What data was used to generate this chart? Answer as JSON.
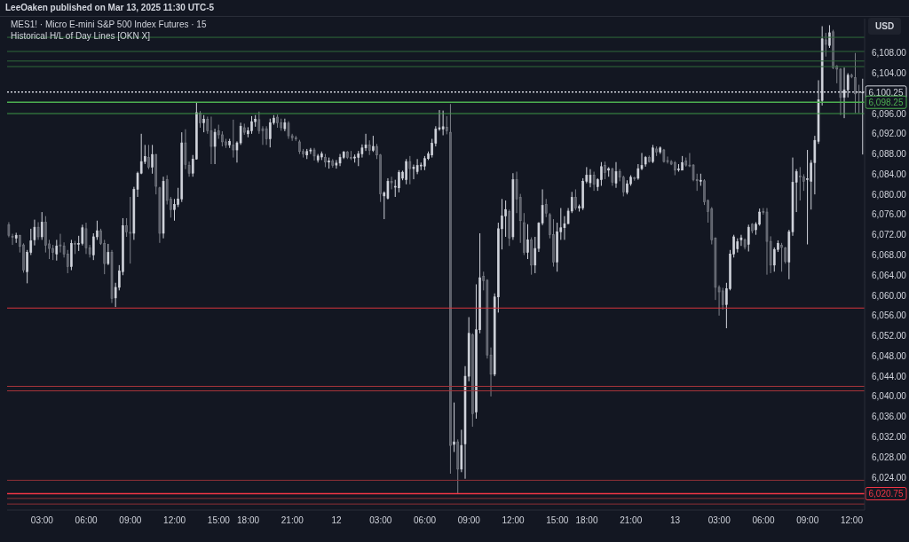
{
  "chart_data": {
    "type": "candlestick",
    "title": "MES1! · Micro E-mini S&P 500 Index Futures · 15",
    "subtitle": "Historical H/L of Day Lines [OKN X]",
    "ylabel": "USD",
    "annotations": [
      "LeeOaken published on Mar 13, 2025 11:30 UTC-5"
    ],
    "categories": [
      null,
      null,
      null,
      null,
      null,
      null,
      null,
      null,
      null,
      "03:00",
      null,
      null,
      null,
      null,
      null,
      null,
      null,
      null,
      null,
      null,
      null,
      "06:00",
      null,
      null,
      null,
      null,
      null,
      null,
      null,
      null,
      null,
      null,
      null,
      "09:00",
      null,
      null,
      null,
      null,
      null,
      null,
      null,
      null,
      null,
      null,
      null,
      "12:00",
      null,
      null,
      null,
      null,
      null,
      null,
      null,
      null,
      null,
      null,
      null,
      "15:00",
      null,
      null,
      null,
      null,
      null,
      null,
      null,
      "18:00",
      null,
      null,
      null,
      null,
      null,
      null,
      null,
      null,
      null,
      null,
      null,
      "21:00",
      null,
      null,
      null,
      null,
      null,
      null,
      null,
      null,
      null,
      null,
      null,
      "12",
      null,
      null,
      null,
      null,
      null,
      null,
      null,
      null,
      null,
      null,
      null,
      "03:00",
      null,
      null,
      null,
      null,
      null,
      null,
      null,
      null,
      null,
      null,
      null,
      "06:00",
      null,
      null,
      null,
      null,
      null,
      null,
      null,
      null,
      null,
      null,
      null,
      "09:00",
      null,
      null,
      null,
      null,
      null,
      null,
      null,
      null,
      null,
      null,
      null,
      "12:00",
      null,
      null,
      null,
      null,
      null,
      null,
      null,
      null,
      null,
      null,
      null,
      "15:00",
      null,
      null,
      null,
      null,
      null,
      null,
      null,
      "18:00",
      null,
      null,
      null,
      null,
      null,
      null,
      null,
      null,
      null,
      null,
      null,
      "21:00",
      null,
      null,
      null,
      null,
      null,
      null,
      null,
      null,
      null,
      null,
      null,
      "13",
      null,
      null,
      null,
      null,
      null,
      null,
      null,
      null,
      null,
      null,
      null,
      "03:00",
      null,
      null,
      null,
      null,
      null,
      null,
      null,
      null,
      null,
      null,
      null,
      "06:00",
      null,
      null,
      null,
      null,
      null,
      null,
      null,
      null,
      null,
      null,
      null,
      "09:00",
      null,
      null,
      null,
      null,
      null,
      null,
      null,
      null,
      null,
      null,
      null,
      "12:00",
      null,
      null,
      null
    ],
    "series": [
      {
        "colors": [
          "#5d606b",
          "#5d606b",
          "#d1d4dc",
          "#5d606b",
          "#5d606b",
          "#d1d4dc",
          "#d1d4dc",
          "#d1d4dc",
          "#5d606b",
          "#d1d4dc",
          "#5d606b",
          "#5d606b",
          "#5d606b",
          "#d1d4dc",
          "#5d606b",
          "#5d606b",
          "#5d606b",
          "#d1d4dc",
          "#5d606b",
          "#d1d4dc",
          "#d1d4dc",
          "#5d606b",
          "#5d606b",
          "#d1d4dc",
          "#d1d4dc",
          "#5d606b",
          "#5d606b",
          "#d1d4dc",
          "#5d606b",
          "#d1d4dc",
          "#d1d4dc",
          "#d1d4dc",
          "#5d606b",
          "#5d606b",
          "#d1d4dc",
          "#d1d4dc",
          "#d1d4dc",
          "#d1d4dc",
          "#5d606b",
          "#d1d4dc",
          "#5d606b",
          "#5d606b",
          "#d1d4dc",
          "#5d606b",
          "#5d606b",
          "#d1d4dc",
          "#d1d4dc",
          "#d1d4dc",
          "#5d606b",
          "#5d606b",
          "#d1d4dc",
          "#d1d4dc",
          "#5d606b",
          "#d1d4dc",
          "#5d606b",
          "#5d606b",
          "#d1d4dc",
          "#5d606b",
          "#5d606b",
          "#5d606b",
          "#d1d4dc",
          "#5d606b",
          "#d1d4dc",
          "#d1d4dc",
          "#5d606b",
          "#d1d4dc",
          "#d1d4dc",
          "#d1d4dc",
          "#5d606b",
          "#5d606b",
          "#5d606b",
          "#d1d4dc",
          "#d1d4dc",
          "#5d606b",
          "#5d606b",
          "#d1d4dc",
          "#5d606b",
          "#5d606b",
          "#5d606b",
          "#5d606b",
          "#5d606b",
          "#d1d4dc",
          "#d1d4dc",
          "#5d606b",
          "#d1d4dc",
          "#d1d4dc",
          "#5d606b",
          "#d1d4dc",
          "#5d606b",
          "#d1d4dc",
          "#d1d4dc",
          "#d1d4dc",
          "#5d606b",
          "#5d606b",
          "#d1d4dc",
          "#d1d4dc",
          "#d1d4dc",
          "#d1d4dc",
          "#5d606b",
          "#d1d4dc",
          "#5d606b",
          "#5d606b",
          "#d1d4dc",
          "#d1d4dc",
          "#5d606b",
          "#d1d4dc",
          "#d1d4dc",
          "#d1d4dc",
          "#d1d4dc",
          "#5d606b",
          "#d1d4dc",
          "#d1d4dc",
          "#d1d4dc",
          "#d1d4dc",
          "#d1d4dc",
          "#d1d4dc",
          "#d1d4dc",
          "#d1d4dc",
          "#d1d4dc",
          "#5d606b",
          "#5d606b",
          "#d1d4dc",
          "#5d606b",
          "#d1d4dc",
          "#d1d4dc",
          "#d1d4dc",
          "#5d606b",
          "#d1d4dc",
          "#d1d4dc",
          "#5d606b",
          "#5d606b",
          "#5d606b",
          "#d1d4dc",
          "#d1d4dc",
          "#d1d4dc",
          "#d1d4dc",
          "#5d606b",
          "#d1d4dc",
          "#5d606b",
          "#5d606b",
          "#5d606b",
          "#d1d4dc",
          "#5d606b",
          "#d1d4dc",
          "#d1d4dc",
          "#d1d4dc",
          "#5d606b",
          "#5d606b",
          "#5d606b",
          "#d1d4dc",
          "#d1d4dc",
          "#d1d4dc",
          "#d1d4dc",
          "#d1d4dc",
          "#5d606b",
          "#d1d4dc",
          "#d1d4dc",
          "#d1d4dc",
          "#d1d4dc",
          "#5d606b",
          "#d1d4dc",
          "#d1d4dc",
          "#5d606b",
          "#d1d4dc",
          "#5d606b",
          "#d1d4dc",
          "#5d606b",
          "#5d606b",
          "#d1d4dc",
          "#d1d4dc",
          "#5d606b",
          "#d1d4dc",
          "#d1d4dc",
          "#d1d4dc",
          "#5d606b",
          "#d1d4dc",
          "#5d606b",
          "#d1d4dc",
          "#5d606b",
          "#5d606b",
          "#5d606b",
          "#5d606b",
          "#d1d4dc",
          "#d1d4dc",
          "#5d606b",
          "#5d606b",
          "#5d606b",
          "#5d606b",
          "#d1d4dc",
          "#5d606b",
          "#5d606b",
          "#5d606b",
          "#5d606b",
          "#5d606b",
          "#5d606b",
          "#d1d4dc",
          "#d1d4dc",
          "#d1d4dc",
          "#d1d4dc",
          "#d1d4dc",
          "#5d606b",
          "#d1d4dc",
          "#5d606b",
          "#d1d4dc",
          "#d1d4dc",
          "#5d606b",
          "#5d606b",
          "#5d606b",
          "#d1d4dc",
          "#d1d4dc",
          "#5d606b",
          "#5d606b",
          "#d1d4dc",
          "#d1d4dc",
          "#d1d4dc",
          "#5d606b",
          "#5d606b",
          "#d1d4dc",
          "#d1d4dc",
          "#d1d4dc",
          "#d1d4dc",
          "#d1d4dc",
          "#5d606b",
          "#d1d4dc",
          "#5d606b",
          "#5d606b",
          "#5d606b",
          "#d1d4dc",
          "#d1d4dc",
          "#5d606b",
          "#5d606b",
          "#5d606b",
          "#d1d4dc"
        ],
        "ohlc": [
          [
            6074.0,
            6074.5,
            6071.5,
            6071.9
          ],
          [
            6071.7,
            6072.2,
            6070.0,
            6071.5
          ],
          [
            6071.3,
            6072.4,
            6070.4,
            6071.9
          ],
          [
            6071.9,
            6072.0,
            6068.5,
            6069.7
          ],
          [
            6070.0,
            6070.3,
            6064.5,
            6065.0
          ],
          [
            6064.7,
            6069.0,
            6062.4,
            6068.5
          ],
          [
            6068.5,
            6073.2,
            6068.0,
            6070.8
          ],
          [
            6071.0,
            6075.0,
            6069.9,
            6073.5
          ],
          [
            6073.5,
            6074.5,
            6071.0,
            6071.6
          ],
          [
            6071.6,
            6076.5,
            6071.0,
            6074.5
          ],
          [
            6074.5,
            6075.7,
            6068.5,
            6069.9
          ],
          [
            6070.2,
            6071.0,
            6067.2,
            6069.3
          ],
          [
            6069.3,
            6070.0,
            6067.0,
            6068.5
          ],
          [
            6068.2,
            6071.0,
            6066.9,
            6069.8
          ],
          [
            6070.0,
            6072.2,
            6068.5,
            6069.8
          ],
          [
            6069.8,
            6070.5,
            6067.5,
            6068.2
          ],
          [
            6068.2,
            6069.0,
            6064.4,
            6065.7
          ],
          [
            6065.7,
            6071.0,
            6065.0,
            6070.3
          ],
          [
            6070.3,
            6070.8,
            6068.2,
            6070.1
          ],
          [
            6070.2,
            6071.8,
            6068.8,
            6070.3
          ],
          [
            6070.3,
            6074.0,
            6069.9,
            6073.4
          ],
          [
            6073.2,
            6074.4,
            6068.2,
            6069.4
          ],
          [
            6069.4,
            6070.0,
            6067.5,
            6068.2
          ],
          [
            6068.0,
            6072.3,
            6067.0,
            6071.6
          ],
          [
            6071.6,
            6074.8,
            6071.0,
            6072.8
          ],
          [
            6072.8,
            6073.2,
            6070.0,
            6070.3
          ],
          [
            6070.3,
            6071.0,
            6064.2,
            6066.3
          ],
          [
            6066.3,
            6070.2,
            6066.0,
            6068.5
          ],
          [
            6068.5,
            6069.0,
            6058.5,
            6059.4
          ],
          [
            6059.5,
            6062.5,
            6057.7,
            6061.6
          ],
          [
            6061.6,
            6066.0,
            6061.0,
            6064.8
          ],
          [
            6064.7,
            6075.3,
            6064.0,
            6073.8
          ],
          [
            6073.8,
            6075.3,
            6071.6,
            6072.6
          ],
          [
            6072.5,
            6079.5,
            6066.3,
            6072.3
          ],
          [
            6072.3,
            6081.5,
            6071.0,
            6081.0
          ],
          [
            6081.0,
            6084.5,
            6079.5,
            6084.2
          ],
          [
            6084.2,
            6092.0,
            6084.0,
            6086.5
          ],
          [
            6086.5,
            6089.8,
            6086.0,
            6087.5
          ],
          [
            6087.3,
            6089.8,
            6085.0,
            6085.4
          ],
          [
            6085.4,
            6089.8,
            6084.1,
            6087.9
          ],
          [
            6087.9,
            6088.0,
            6080.0,
            6081.6
          ],
          [
            6081.3,
            6081.5,
            6070.4,
            6072.3
          ],
          [
            6072.3,
            6083.5,
            6071.3,
            6082.6
          ],
          [
            6082.9,
            6083.8,
            6078.0,
            6078.8
          ],
          [
            6079.1,
            6079.5,
            6075.4,
            6077.0
          ],
          [
            6077.0,
            6079.1,
            6074.8,
            6078.0
          ],
          [
            6078.0,
            6081.3,
            6077.5,
            6079.1
          ],
          [
            6079.1,
            6092.3,
            6078.5,
            6090.2
          ],
          [
            6090.2,
            6092.9,
            6085.0,
            6085.9
          ],
          [
            6085.7,
            6086.5,
            6083.5,
            6084.2
          ],
          [
            6084.2,
            6087.8,
            6083.5,
            6087.0
          ],
          [
            6087.0,
            6098.2,
            6086.9,
            6096.2
          ],
          [
            6096.1,
            6096.5,
            6093.2,
            6094.2
          ],
          [
            6094.2,
            6095.7,
            6092.3,
            6094.9
          ],
          [
            6094.9,
            6095.4,
            6092.0,
            6092.6
          ],
          [
            6092.6,
            6095.4,
            6086.0,
            6089.5
          ],
          [
            6089.5,
            6093.0,
            6086.0,
            6092.3
          ],
          [
            6092.6,
            6093.8,
            6091.0,
            6091.8
          ],
          [
            6091.8,
            6092.5,
            6089.5,
            6090.4
          ],
          [
            6090.4,
            6091.0,
            6089.2,
            6089.8
          ],
          [
            6089.8,
            6091.0,
            6089.2,
            6090.5
          ],
          [
            6089.8,
            6094.8,
            6087.3,
            6088.8
          ],
          [
            6088.8,
            6090.5,
            6086.3,
            6090.2
          ],
          [
            6090.2,
            6094.2,
            6089.8,
            6093.5
          ],
          [
            6093.2,
            6094.0,
            6091.8,
            6092.3
          ],
          [
            6092.0,
            6093.3,
            6091.3,
            6092.6
          ],
          [
            6092.6,
            6095.5,
            6092.0,
            6094.4
          ],
          [
            6094.4,
            6095.7,
            6093.4,
            6094.9
          ],
          [
            6094.8,
            6096.4,
            6092.0,
            6092.6
          ],
          [
            6093.0,
            6093.5,
            6089.8,
            6092.6
          ],
          [
            6093.0,
            6093.5,
            6089.8,
            6091.0
          ],
          [
            6091.0,
            6095.0,
            6089.3,
            6094.2
          ],
          [
            6094.2,
            6095.7,
            6093.8,
            6095.1
          ],
          [
            6095.3,
            6095.8,
            6093.2,
            6094.2
          ],
          [
            6094.2,
            6095.0,
            6092.6,
            6093.2
          ],
          [
            6093.0,
            6095.0,
            6092.5,
            6094.2
          ],
          [
            6094.1,
            6094.5,
            6091.0,
            6091.6
          ],
          [
            6091.6,
            6092.0,
            6090.6,
            6091.2
          ],
          [
            6091.2,
            6091.6,
            6090.6,
            6091.0
          ],
          [
            6090.4,
            6090.8,
            6088.0,
            6088.5
          ],
          [
            6088.5,
            6089.0,
            6087.3,
            6088.0
          ],
          [
            6087.8,
            6089.0,
            6087.0,
            6088.5
          ],
          [
            6088.6,
            6089.2,
            6088.0,
            6088.8
          ],
          [
            6088.8,
            6089.2,
            6086.7,
            6087.6
          ],
          [
            6086.8,
            6088.0,
            6086.3,
            6087.6
          ],
          [
            6087.4,
            6088.5,
            6086.8,
            6088.0
          ],
          [
            6087.3,
            6088.0,
            6085.4,
            6086.4
          ],
          [
            6086.4,
            6087.3,
            6085.1,
            6086.6
          ],
          [
            6086.6,
            6087.0,
            6085.3,
            6085.7
          ],
          [
            6085.8,
            6086.8,
            6085.1,
            6086.2
          ],
          [
            6086.2,
            6088.0,
            6085.6,
            6087.3
          ],
          [
            6087.3,
            6088.6,
            6087.0,
            6088.4
          ],
          [
            6088.4,
            6088.6,
            6087.0,
            6087.3
          ],
          [
            6087.3,
            6088.6,
            6086.8,
            6087.2
          ],
          [
            6087.2,
            6087.9,
            6086.3,
            6087.4
          ],
          [
            6087.3,
            6088.6,
            6085.6,
            6088.0
          ],
          [
            6088.0,
            6089.9,
            6087.3,
            6089.2
          ],
          [
            6089.2,
            6092.0,
            6088.6,
            6089.8
          ],
          [
            6089.8,
            6090.7,
            6087.8,
            6088.7
          ],
          [
            6088.7,
            6091.6,
            6088.4,
            6089.5
          ],
          [
            6089.5,
            6090.0,
            6087.0,
            6087.8
          ],
          [
            6087.8,
            6088.0,
            6078.5,
            6080.1
          ],
          [
            6079.7,
            6080.6,
            6075.1,
            6080.3
          ],
          [
            6079.2,
            6083.2,
            6079.0,
            6082.6
          ],
          [
            6082.6,
            6083.5,
            6081.0,
            6082.3
          ],
          [
            6081.6,
            6082.9,
            6079.5,
            6081.6
          ],
          [
            6081.3,
            6084.8,
            6080.4,
            6084.3
          ],
          [
            6083.2,
            6084.7,
            6082.8,
            6084.4
          ],
          [
            6082.9,
            6087.0,
            6082.0,
            6086.5
          ],
          [
            6086.5,
            6087.6,
            6082.0,
            6085.1
          ],
          [
            6085.1,
            6085.9,
            6083.0,
            6085.4
          ],
          [
            6084.5,
            6087.0,
            6084.0,
            6085.7
          ],
          [
            6085.7,
            6086.3,
            6084.8,
            6085.8
          ],
          [
            6085.6,
            6087.6,
            6084.8,
            6087.1
          ],
          [
            6087.1,
            6088.5,
            6086.8,
            6088.0
          ],
          [
            6087.8,
            6091.0,
            6087.3,
            6090.1
          ],
          [
            6090.1,
            6093.5,
            6089.5,
            6092.9
          ],
          [
            6092.9,
            6096.7,
            6092.6,
            6093.2
          ],
          [
            6092.9,
            6096.6,
            6091.7,
            6093.4
          ],
          [
            6093.3,
            6095.5,
            6091.9,
            6092.6
          ],
          [
            6092.3,
            6097.9,
            6024.7,
            6030.3
          ],
          [
            6030.5,
            6038.8,
            6029.0,
            6031.0
          ],
          [
            6031.0,
            6031.5,
            6020.75,
            6025.6
          ],
          [
            6025.6,
            6033.4,
            6025.0,
            6030.3
          ],
          [
            6030.6,
            6046.0,
            6023.7,
            6044.0
          ],
          [
            6044.0,
            6055.7,
            6043.0,
            6052.5
          ],
          [
            6052.2,
            6052.5,
            6034.0,
            6036.6
          ],
          [
            6036.9,
            6062.2,
            6035.6,
            6053.2
          ],
          [
            6053.2,
            6072.3,
            6052.5,
            6063.5
          ],
          [
            6063.8,
            6064.7,
            6061.0,
            6062.9
          ],
          [
            6063.0,
            6063.2,
            6047.5,
            6048.2
          ],
          [
            6048.2,
            6049.7,
            6040.0,
            6044.4
          ],
          [
            6044.4,
            6060.4,
            6044.0,
            6059.7
          ],
          [
            6059.7,
            6074.4,
            6056.6,
            6073.2
          ],
          [
            6073.2,
            6079.1,
            6069.1,
            6075.7
          ],
          [
            6075.7,
            6078.8,
            6071.6,
            6077.0
          ],
          [
            6076.6,
            6077.0,
            6069.8,
            6071.3
          ],
          [
            6071.6,
            6084.2,
            6071.0,
            6082.9
          ],
          [
            6082.9,
            6084.5,
            6076.3,
            6079.1
          ],
          [
            6079.4,
            6080.1,
            6070.4,
            6074.8
          ],
          [
            6074.4,
            6076.3,
            6068.0,
            6068.5
          ],
          [
            6068.5,
            6074.1,
            6067.2,
            6071.0
          ],
          [
            6071.0,
            6071.5,
            6064.1,
            6066.0
          ],
          [
            6066.0,
            6071.6,
            6064.4,
            6069.3
          ],
          [
            6069.3,
            6074.5,
            6068.6,
            6074.3
          ],
          [
            6074.3,
            6081.0,
            6073.9,
            6077.8
          ],
          [
            6078.0,
            6079.1,
            6075.5,
            6076.3
          ],
          [
            6076.0,
            6076.3,
            6071.3,
            6072.0
          ],
          [
            6072.0,
            6075.1,
            6065.7,
            6066.6
          ],
          [
            6066.6,
            6074.4,
            6064.7,
            6072.6
          ],
          [
            6072.6,
            6077.3,
            6071.0,
            6073.4
          ],
          [
            6073.4,
            6075.7,
            6071.0,
            6074.2
          ],
          [
            6074.2,
            6077.3,
            6074.2,
            6076.7
          ],
          [
            6076.7,
            6080.5,
            6076.3,
            6079.4
          ],
          [
            6079.4,
            6081.0,
            6076.9,
            6077.3
          ],
          [
            6077.3,
            6078.0,
            6076.6,
            6077.6
          ],
          [
            6077.3,
            6083.2,
            6076.9,
            6082.6
          ],
          [
            6082.6,
            6085.4,
            6082.2,
            6083.8
          ],
          [
            6082.3,
            6085.0,
            6081.4,
            6083.8
          ],
          [
            6083.8,
            6084.5,
            6080.7,
            6082.0
          ],
          [
            6081.5,
            6083.2,
            6080.7,
            6082.9
          ],
          [
            6082.9,
            6086.4,
            6081.7,
            6085.5
          ],
          [
            6085.7,
            6086.5,
            6083.0,
            6084.3
          ],
          [
            6084.8,
            6085.4,
            6083.5,
            6085.1
          ],
          [
            6085.0,
            6085.3,
            6081.7,
            6082.4
          ],
          [
            6082.2,
            6086.4,
            6081.3,
            6084.5
          ],
          [
            6084.5,
            6085.0,
            6082.6,
            6083.4
          ],
          [
            6083.4,
            6083.7,
            6079.6,
            6080.5
          ],
          [
            6080.4,
            6082.8,
            6080.0,
            6082.1
          ],
          [
            6082.1,
            6083.8,
            6081.7,
            6083.4
          ],
          [
            6083.3,
            6083.5,
            6082.7,
            6083.2
          ],
          [
            6083.2,
            6086.0,
            6082.9,
            6085.1
          ],
          [
            6085.1,
            6088.2,
            6084.8,
            6085.7
          ],
          [
            6086.0,
            6087.6,
            6085.5,
            6087.3
          ],
          [
            6087.3,
            6087.7,
            6086.3,
            6086.5
          ],
          [
            6086.5,
            6089.8,
            6086.2,
            6089.2
          ],
          [
            6089.0,
            6089.5,
            6087.6,
            6088.4
          ],
          [
            6088.4,
            6089.5,
            6088.0,
            6089.2
          ],
          [
            6088.8,
            6089.0,
            6086.3,
            6086.5
          ],
          [
            6086.7,
            6087.5,
            6086.1,
            6086.5
          ],
          [
            6086.5,
            6086.8,
            6085.8,
            6086.0
          ],
          [
            6086.3,
            6086.6,
            6083.8,
            6084.8
          ],
          [
            6084.9,
            6086.0,
            6084.5,
            6085.0
          ],
          [
            6084.8,
            6087.6,
            6084.8,
            6086.3
          ],
          [
            6086.6,
            6087.3,
            6085.5,
            6085.8
          ],
          [
            6085.8,
            6088.2,
            6085.4,
            6085.7
          ],
          [
            6085.8,
            6086.0,
            6082.6,
            6082.9
          ],
          [
            6082.9,
            6084.1,
            6080.7,
            6082.7
          ],
          [
            6082.6,
            6084.1,
            6081.7,
            6082.8
          ],
          [
            6082.7,
            6083.0,
            6077.9,
            6078.5
          ],
          [
            6078.8,
            6079.0,
            6074.4,
            6076.6
          ],
          [
            6077.1,
            6077.5,
            6070.1,
            6071.0
          ],
          [
            6071.3,
            6071.5,
            6059.1,
            6061.6
          ],
          [
            6061.6,
            6062.0,
            6056.0,
            6060.7
          ],
          [
            6060.9,
            6061.5,
            6057.2,
            6058.2
          ],
          [
            6058.2,
            6062.5,
            6053.5,
            6061.3
          ],
          [
            6061.3,
            6069.0,
            6061.0,
            6068.2
          ],
          [
            6068.2,
            6072.0,
            6067.5,
            6071.6
          ],
          [
            6069.2,
            6071.3,
            6068.5,
            6070.6
          ],
          [
            6071.0,
            6072.0,
            6069.8,
            6071.4
          ],
          [
            6071.0,
            6071.3,
            6069.1,
            6069.6
          ],
          [
            6070.1,
            6074.0,
            6068.7,
            6073.5
          ],
          [
            6074.1,
            6074.3,
            6072.3,
            6072.8
          ],
          [
            6073.0,
            6074.5,
            6072.0,
            6074.1
          ],
          [
            6074.1,
            6077.2,
            6073.8,
            6076.5
          ],
          [
            6076.6,
            6077.3,
            6076.0,
            6076.4
          ],
          [
            6076.5,
            6077.3,
            6064.1,
            6070.7
          ],
          [
            6070.7,
            6071.7,
            6064.4,
            6066.0
          ],
          [
            6066.0,
            6069.5,
            6064.7,
            6069.1
          ],
          [
            6069.1,
            6070.9,
            6068.6,
            6070.3
          ],
          [
            6069.9,
            6070.4,
            6064.7,
            6069.5
          ],
          [
            6069.4,
            6069.6,
            6066.3,
            6066.7
          ],
          [
            6066.6,
            6073.0,
            6063.2,
            6072.6
          ],
          [
            6072.6,
            6087.3,
            6071.8,
            6082.4
          ],
          [
            6082.4,
            6085.0,
            6076.5,
            6084.5
          ],
          [
            6083.6,
            6085.4,
            6078.8,
            6083.5
          ],
          [
            6083.5,
            6084.0,
            6080.7,
            6082.6
          ],
          [
            6083.0,
            6088.8,
            6070.1,
            6083.1
          ],
          [
            6082.6,
            6086.8,
            6077.0,
            6086.2
          ],
          [
            6086.3,
            6091.6,
            6080.0,
            6090.7
          ],
          [
            6090.5,
            6102.6,
            6090.0,
            6098.7
          ],
          [
            6098.6,
            6113.3,
            6097.6,
            6110.8
          ],
          [
            6110.6,
            6112.0,
            6107.3,
            6109.7
          ],
          [
            6109.5,
            6113.5,
            6109.0,
            6112.0
          ],
          [
            6112.2,
            6112.6,
            6104.8,
            6105.1
          ],
          [
            6105.4,
            6105.6,
            6102.0,
            6104.8
          ],
          [
            6104.8,
            6105.0,
            6095.7,
            6099.2
          ],
          [
            6099.2,
            6105.1,
            6095.1,
            6100.7
          ],
          [
            6100.7,
            6104.0,
            6099.2,
            6103.6
          ],
          [
            6103.6,
            6103.9,
            6103.0,
            6103.3
          ],
          [
            6103.1,
            6108.0,
            6096.1,
            6099.9
          ],
          [
            6100.3,
            6101.7,
            6096.1,
            6100.25
          ],
          [
            6100.25,
            6102.9,
            6087.9,
            6100.25
          ]
        ]
      }
    ],
    "ylim": [
      6017.5,
      6114.8
    ],
    "yticks": [
      {
        "value": 6024,
        "label": "6,024.00"
      },
      {
        "value": 6028,
        "label": "6,028.00"
      },
      {
        "value": 6032,
        "label": "6,032.00"
      },
      {
        "value": 6036,
        "label": "6,036.00"
      },
      {
        "value": 6040,
        "label": "6,040.00"
      },
      {
        "value": 6044,
        "label": "6,044.00"
      },
      {
        "value": 6048,
        "label": "6,048.00"
      },
      {
        "value": 6052,
        "label": "6,052.00"
      },
      {
        "value": 6056,
        "label": "6,056.00"
      },
      {
        "value": 6060,
        "label": "6,060.00"
      },
      {
        "value": 6064,
        "label": "6,064.00"
      },
      {
        "value": 6068,
        "label": "6,068.00"
      },
      {
        "value": 6072,
        "label": "6,072.00"
      },
      {
        "value": 6076,
        "label": "6,076.00"
      },
      {
        "value": 6080,
        "label": "6,080.00"
      },
      {
        "value": 6084,
        "label": "6,084.00"
      },
      {
        "value": 6088,
        "label": "6,088.00"
      },
      {
        "value": 6092,
        "label": "6,092.00"
      },
      {
        "value": 6096,
        "label": "6,096.00"
      },
      {
        "value": 6104,
        "label": "6,104.00"
      },
      {
        "value": 6108,
        "label": "6,108.00"
      }
    ],
    "ref_lines": [
      {
        "axis": "y",
        "value": 6111.1,
        "color": "#2f6b3a"
      },
      {
        "axis": "y",
        "value": 6108.3,
        "color": "#2f6b3a"
      },
      {
        "axis": "y",
        "value": 6106.4,
        "color": "#2f6b3a"
      },
      {
        "axis": "y",
        "value": 6105.3,
        "color": "#2f6b3a"
      },
      {
        "axis": "y",
        "value": 6100.25,
        "label": "6,100.25",
        "color": "#d1d4dc",
        "line_style": "dotted"
      },
      {
        "axis": "y",
        "value": 6098.25,
        "label": "6,098.25",
        "color": "#4caf50"
      },
      {
        "axis": "y",
        "value": 6096.0,
        "color": "#3f9a48"
      },
      {
        "axis": "y",
        "value": 6057.5,
        "color": "#d9363e"
      },
      {
        "axis": "y",
        "value": 6042.0,
        "color": "#a8353b"
      },
      {
        "axis": "y",
        "value": 6041.1,
        "color": "#a8353b"
      },
      {
        "axis": "y",
        "value": 6023.4,
        "color": "#8f3036"
      },
      {
        "axis": "y",
        "value": 6020.75,
        "label": "6,020.75",
        "color": "#f23645"
      },
      {
        "axis": "y",
        "value": 6019.8,
        "color": "#8f3036"
      },
      {
        "axis": "y",
        "value": 6018.7,
        "color": "#8f3036"
      }
    ],
    "grid": false,
    "legend": false
  }
}
